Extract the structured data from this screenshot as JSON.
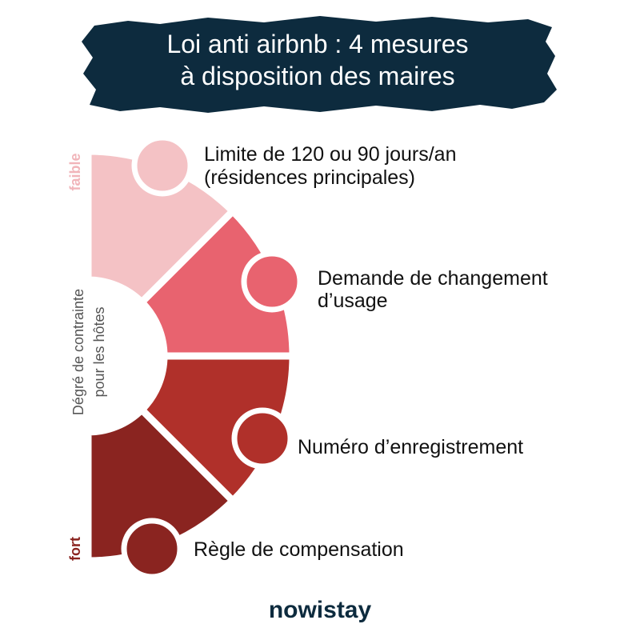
{
  "header": {
    "title_lines": [
      "Loi anti airbnb : 4 mesures",
      "à disposition des maires"
    ]
  },
  "scale": {
    "top_label": "faible",
    "bottom_label": "fort",
    "axis_lines": [
      "Dégré de contrainte",
      "pour les hôtes"
    ]
  },
  "items": [
    {
      "lines": [
        "Limite de 120 ou 90 jours/an",
        "(résidences principales)"
      ]
    },
    {
      "lines": [
        "Demande de changement",
        "d’usage"
      ]
    },
    {
      "lines": [
        "Numéro d’enregistrement"
      ]
    },
    {
      "lines": [
        "Règle de compensation"
      ]
    }
  ],
  "footer": {
    "logo": "nowistay"
  }
}
